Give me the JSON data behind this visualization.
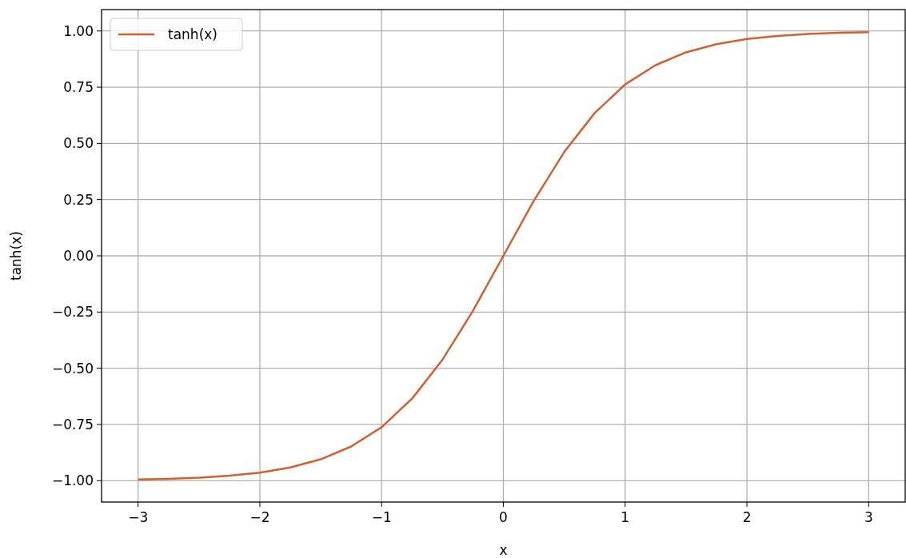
{
  "chart_data": {
    "type": "line",
    "xlabel": "x",
    "ylabel": "tanh(x)",
    "x": [
      -3,
      -2.75,
      -2.5,
      -2.25,
      -2,
      -1.75,
      -1.5,
      -1.25,
      -1,
      -0.75,
      -0.5,
      -0.25,
      0,
      0.25,
      0.5,
      0.75,
      1,
      1.25,
      1.5,
      1.75,
      2,
      2.25,
      2.5,
      2.75,
      3
    ],
    "series": [
      {
        "name": "tanh(x)",
        "color": "#d2602f",
        "values": [
          -0.995,
          -0.992,
          -0.987,
          -0.978,
          -0.964,
          -0.941,
          -0.905,
          -0.848,
          -0.762,
          -0.635,
          -0.462,
          -0.245,
          0,
          0.245,
          0.462,
          0.635,
          0.762,
          0.848,
          0.905,
          0.941,
          0.964,
          0.978,
          0.987,
          0.992,
          0.995
        ]
      }
    ],
    "xlim": [
      -3.3,
      3.3
    ],
    "ylim": [
      -1.095,
      1.095
    ],
    "xticks": [
      {
        "value": -3,
        "label": "−3"
      },
      {
        "value": -2,
        "label": "−2"
      },
      {
        "value": -1,
        "label": "−1"
      },
      0,
      1,
      2,
      3
    ],
    "yticks": [
      {
        "value": -1,
        "label": "−1.00"
      },
      {
        "value": -0.75,
        "label": "−0.75"
      },
      {
        "value": -0.5,
        "label": "−0.50"
      },
      {
        "value": -0.25,
        "label": "−0.25"
      },
      {
        "value": 0,
        "label": "0.00"
      },
      {
        "value": 0.25,
        "label": "0.25"
      },
      {
        "value": 0.5,
        "label": "0.50"
      },
      {
        "value": 0.75,
        "label": "0.75"
      },
      {
        "value": 1,
        "label": "1.00"
      }
    ],
    "grid": true,
    "legend": "top left",
    "marker": "none",
    "line_style": "solid"
  }
}
